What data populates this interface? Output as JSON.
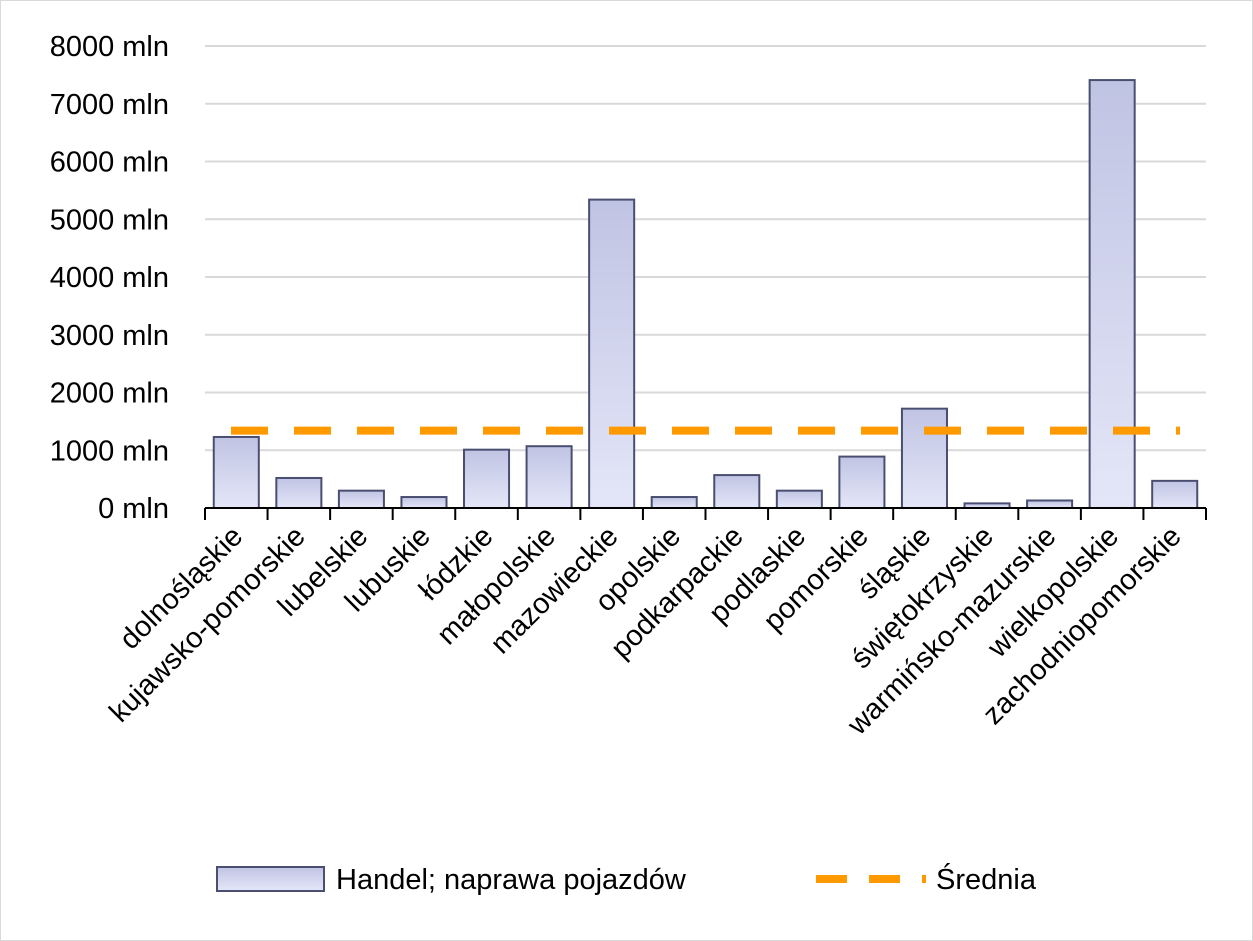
{
  "chart_data": {
    "type": "bar",
    "categories": [
      "dolnośląskie",
      "kujawsko-pomorskie",
      "lubelskie",
      "lubuskie",
      "łódzkie",
      "małopolskie",
      "mazowieckie",
      "opolskie",
      "podkarpackie",
      "podlaskie",
      "pomorskie",
      "śląskie",
      "świętokrzyskie",
      "warmińsko-mazurskie",
      "wielkopolskie",
      "zachodniopomorskie"
    ],
    "series": [
      {
        "name": "Handel; naprawa pojazdów",
        "kind": "bar",
        "values": [
          1230,
          520,
          300,
          190,
          1010,
          1070,
          5340,
          190,
          570,
          300,
          890,
          1720,
          80,
          130,
          7410,
          470
        ]
      },
      {
        "name": "Średnia",
        "kind": "line",
        "style": "dashed",
        "values": [
          1340,
          1340,
          1340,
          1340,
          1340,
          1340,
          1340,
          1340,
          1340,
          1340,
          1340,
          1340,
          1340,
          1340,
          1340,
          1340
        ]
      }
    ],
    "yticks": [
      "0 mln",
      "1000 mln",
      "2000 mln",
      "3000 mln",
      "4000 mln",
      "5000 mln",
      "6000 mln",
      "7000 mln",
      "8000 mln"
    ],
    "ylim": [
      0,
      8000
    ],
    "grid": true,
    "legend_position": "bottom",
    "colors": {
      "bar_top": "#c0c4e3",
      "bar_bottom": "#e4e6f8",
      "bar_border": "#4a4f72",
      "average_line": "#ff9900",
      "grid": "#d9d9d9"
    }
  }
}
